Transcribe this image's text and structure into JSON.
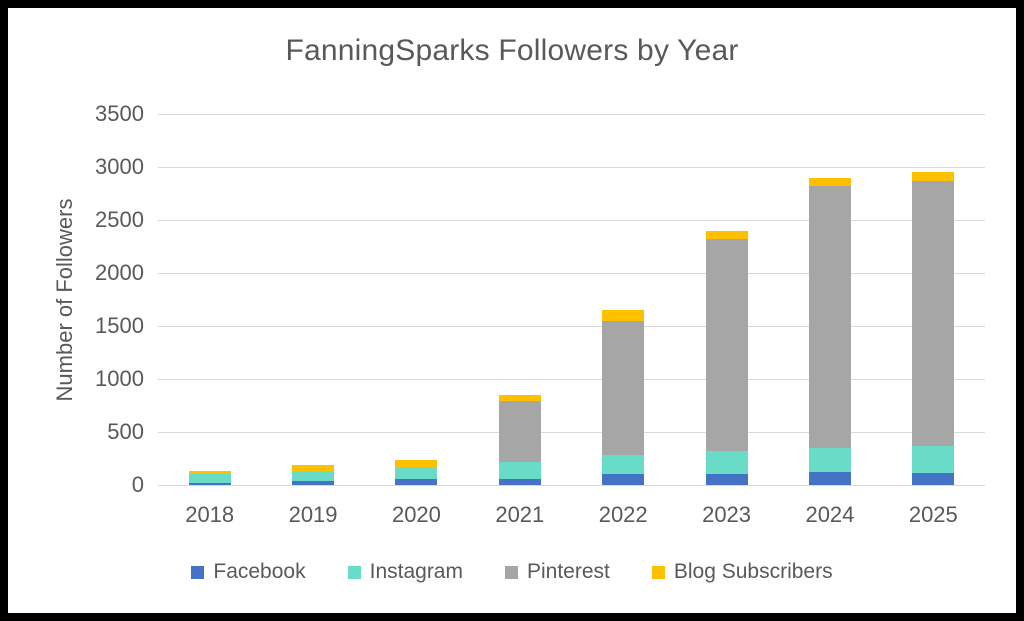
{
  "chart_data": {
    "type": "bar",
    "stacked": true,
    "title": "FanningSparks Followers by Year",
    "xlabel": "",
    "ylabel": "Number of Followers",
    "categories": [
      "2018",
      "2019",
      "2020",
      "2021",
      "2022",
      "2023",
      "2024",
      "2025"
    ],
    "series": [
      {
        "name": "Facebook",
        "color": "#4472C4",
        "values": [
          15,
          40,
          55,
          55,
          100,
          100,
          120,
          115
        ]
      },
      {
        "name": "Instagram",
        "color": "#69DCC8",
        "values": [
          90,
          95,
          115,
          165,
          180,
          225,
          225,
          255
        ]
      },
      {
        "name": "Pinterest",
        "color": "#A6A6A6",
        "values": [
          0,
          0,
          0,
          575,
          1270,
          1995,
          2480,
          2495
        ]
      },
      {
        "name": "Blog Subscribers",
        "color": "#FFC000",
        "values": [
          30,
          50,
          65,
          55,
          100,
          80,
          75,
          85
        ]
      }
    ],
    "totals": [
      135,
      185,
      235,
      850,
      1650,
      2400,
      2900,
      2950
    ],
    "ylim": [
      0,
      3500
    ],
    "yticks": [
      0,
      500,
      1000,
      1500,
      2000,
      2500,
      3000,
      3500
    ],
    "grid": true,
    "legend_position": "bottom",
    "colors": {
      "text": "#595959",
      "gridline": "#D9D9D9",
      "background": "#FFFFFF",
      "frame_border": "#000000"
    }
  }
}
